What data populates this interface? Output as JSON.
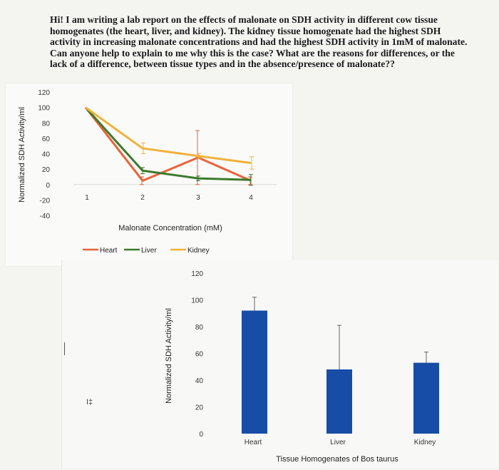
{
  "question": {
    "text": "Hi! I am writing a lab report on the effects of malonate on SDH activity in different cow tissue homogenates (the heart, liver, and kidney). The kidney tissue homogenate had the highest SDH activity in increasing malonate concentrations and had the highest SDH activity in 1mM of malonate. Can anyone help to explain to me why this is the case? What are the reasons for differences, or the lack of a difference, between tissue types and in the absence/presence of malonate??"
  },
  "chart_data": [
    {
      "type": "line",
      "xlabel": "Malonate Concentration (mM)",
      "ylabel": "Normalized SDH Activity/ml",
      "x": [
        1,
        2,
        3,
        4
      ],
      "x_ticks": [
        "1",
        "2",
        "3",
        "4"
      ],
      "y_ticks": [
        "120",
        "100",
        "80",
        "60",
        "40",
        "20",
        "0",
        "-20",
        "-40"
      ],
      "ylim": [
        -40,
        120
      ],
      "legend_position": "bottom",
      "series": [
        {
          "name": "Heart",
          "color": "#e8643a",
          "values": [
            100,
            5,
            35,
            5
          ],
          "err": [
            0,
            5,
            35,
            5
          ]
        },
        {
          "name": "Liver",
          "color": "#3d7a2e",
          "values": [
            100,
            18,
            8,
            6
          ],
          "err": [
            0,
            4,
            3,
            7
          ]
        },
        {
          "name": "Kidney",
          "color": "#f0b13c",
          "values": [
            100,
            47,
            37,
            28
          ],
          "err": [
            0,
            7,
            3,
            8
          ]
        }
      ]
    },
    {
      "type": "bar",
      "title": "",
      "xlabel": "Tissue Homogenates of Bos taurus",
      "ylabel": "Normalized SDH Activity/ml",
      "categories": [
        "Heart",
        "Liver",
        "Kidney"
      ],
      "values": [
        92,
        48,
        53
      ],
      "err": [
        10,
        33,
        8
      ],
      "y_ticks": [
        "120",
        "100",
        "80",
        "60",
        "40",
        "20",
        "0"
      ],
      "ylim": [
        0,
        120
      ],
      "color": "#174da6"
    }
  ],
  "stray_marks": {
    "glyph": "I‡"
  }
}
